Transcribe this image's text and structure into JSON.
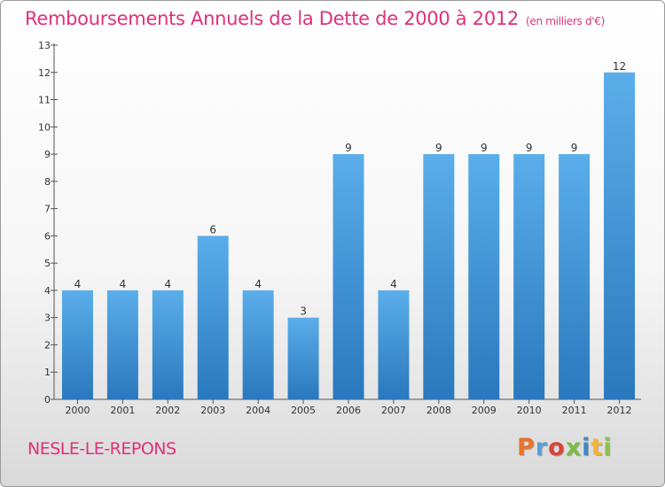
{
  "title": "Remboursements Annuels de la Dette de 2000 à 2012",
  "unit_note": "(en milliers d'€)",
  "commune": "NESLE-LE-REPONS",
  "logo_text": "Proxiti",
  "logo_colors": [
    "#e8732a",
    "#5aa0d8",
    "#d8473a",
    "#7cbc43",
    "#3d88c8",
    "#f0b43c",
    "#8bc34a"
  ],
  "colors": {
    "bar": "#4a9ee0",
    "accent": "#e0307b"
  },
  "chart_data": {
    "type": "bar",
    "title": "Remboursements Annuels de la Dette de 2000 à 2012",
    "categories": [
      "2000",
      "2001",
      "2002",
      "2003",
      "2004",
      "2005",
      "2006",
      "2007",
      "2008",
      "2009",
      "2010",
      "2011",
      "2012"
    ],
    "values": [
      4,
      4,
      4,
      6,
      4,
      3,
      9,
      4,
      9,
      9,
      9,
      9,
      12
    ],
    "ylim": [
      0,
      13
    ],
    "yticks": [
      0,
      1,
      2,
      3,
      4,
      5,
      6,
      7,
      8,
      9,
      10,
      11,
      12,
      13
    ],
    "grid": false,
    "data_labels": true
  }
}
